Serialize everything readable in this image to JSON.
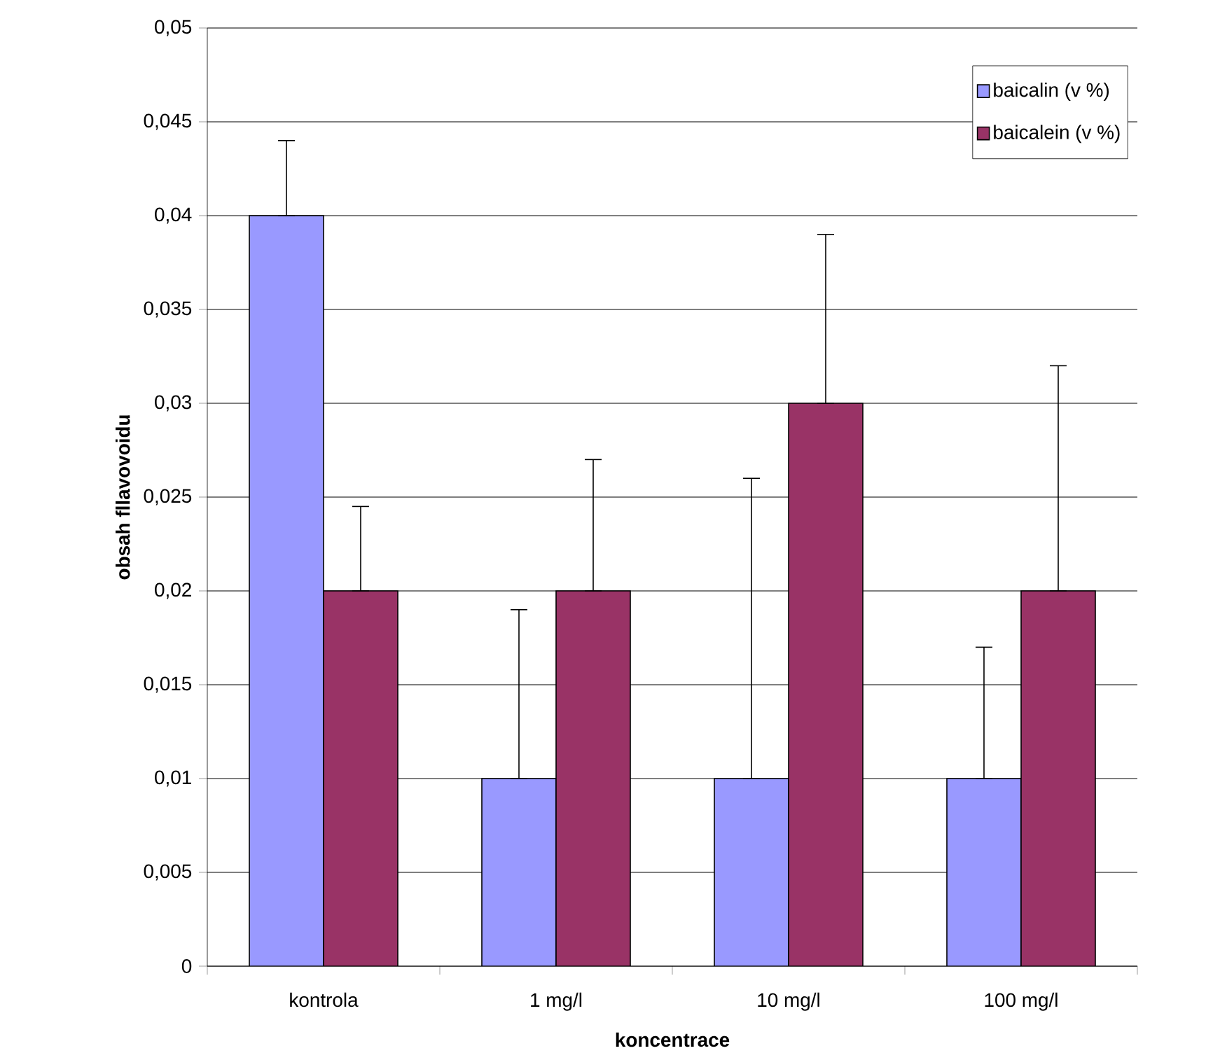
{
  "chart_data": {
    "type": "bar",
    "xlabel": "koncentrace",
    "ylabel": "obsah fllavovoidu",
    "categories": [
      "kontrola",
      "1 mg/l",
      "10 mg/l",
      "100 mg/l"
    ],
    "series": [
      {
        "name": "baicalin (v %)",
        "color": "#9999ff",
        "values": [
          0.04,
          0.01,
          0.01,
          0.01
        ],
        "errors": [
          [
            0.04,
            0.044
          ],
          [
            0.01,
            0.019
          ],
          [
            0.01,
            0.026
          ],
          [
            0.01,
            0.017
          ]
        ]
      },
      {
        "name": "baicalein (v %)",
        "color": "#993366",
        "values": [
          0.02,
          0.02,
          0.03,
          0.02
        ],
        "errors": [
          [
            0.02,
            0.0245
          ],
          [
            0.02,
            0.027
          ],
          [
            0.03,
            0.039
          ],
          [
            0.02,
            0.032
          ]
        ]
      }
    ],
    "ylim": [
      0,
      0.05
    ],
    "yticks": [
      {
        "value": 0,
        "label": "0"
      },
      {
        "value": 0.005,
        "label": "0,005"
      },
      {
        "value": 0.01,
        "label": "0,01"
      },
      {
        "value": 0.015,
        "label": "0,015"
      },
      {
        "value": 0.02,
        "label": "0,02"
      },
      {
        "value": 0.025,
        "label": "0,025"
      },
      {
        "value": 0.03,
        "label": "0,03"
      },
      {
        "value": 0.035,
        "label": "0,035"
      },
      {
        "value": 0.04,
        "label": "0,04"
      },
      {
        "value": 0.045,
        "label": "0,045"
      },
      {
        "value": 0.05,
        "label": "0,05"
      }
    ],
    "grid": "y",
    "legend": "top right"
  }
}
